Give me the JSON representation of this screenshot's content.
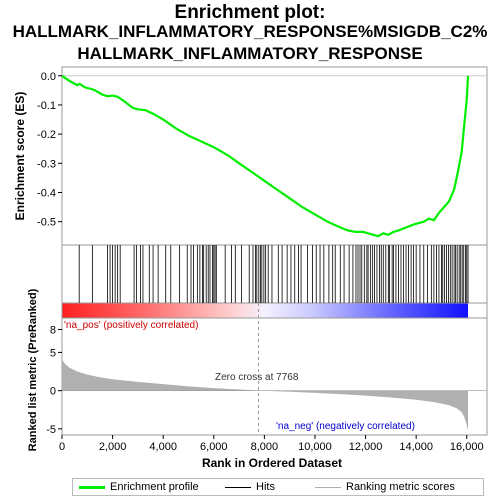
{
  "titles": {
    "line1": "Enrichment plot:",
    "line2": "HALLMARK_INFLAMMATORY_RESPONSE%MSIGDB_C2%",
    "line3": "HALLMARK_INFLAMMATORY_RESPONSE"
  },
  "chart_data": {
    "type": "line",
    "xlabel": "Rank in Ordered Dataset",
    "ylabel_top": "Enrichment score (ES)",
    "ylabel_bottom": "Ranked list metric (PreRanked)",
    "xlim": [
      0,
      16800
    ],
    "x_ticks": [
      0,
      2000,
      4000,
      6000,
      8000,
      10000,
      12000,
      14000,
      16000
    ],
    "x_tick_labels": [
      "0",
      "2,000",
      "4,000",
      "6,000",
      "8,000",
      "10,000",
      "12,000",
      "14,000",
      "16,000"
    ],
    "es_ylim": [
      -0.58,
      0.03
    ],
    "es_ticks": [
      0.0,
      -0.1,
      -0.2,
      -0.3,
      -0.4,
      -0.5
    ],
    "es_tick_labels": [
      "0.0",
      "-0.1",
      "-0.2",
      "-0.3",
      "-0.4",
      "-0.5"
    ],
    "metric_ylim": [
      -5.8,
      9.5
    ],
    "metric_ticks": [
      8,
      5,
      0,
      -5
    ],
    "metric_tick_labels": [
      "8",
      "5",
      "0",
      "-5"
    ],
    "enrichment_profile": {
      "x": [
        0,
        300,
        600,
        700,
        900,
        1150,
        1300,
        1600,
        1800,
        2000,
        2200,
        2500,
        2800,
        3000,
        3300,
        3600,
        4000,
        4500,
        5000,
        5500,
        6000,
        6300,
        6600,
        7000,
        7500,
        8000,
        8500,
        9000,
        9500,
        10000,
        10500,
        11000,
        11300,
        11600,
        11900,
        12100,
        12300,
        12500,
        12700,
        12900,
        13100,
        13300,
        13600,
        13900,
        14100,
        14300,
        14500,
        14700,
        14900,
        15100,
        15300,
        15500,
        15650,
        15800,
        15900,
        16000,
        16050
      ],
      "y": [
        0.0,
        -0.018,
        -0.032,
        -0.028,
        -0.04,
        -0.045,
        -0.05,
        -0.065,
        -0.07,
        -0.068,
        -0.072,
        -0.09,
        -0.11,
        -0.115,
        -0.118,
        -0.13,
        -0.15,
        -0.18,
        -0.205,
        -0.225,
        -0.245,
        -0.26,
        -0.275,
        -0.3,
        -0.33,
        -0.36,
        -0.39,
        -0.42,
        -0.45,
        -0.475,
        -0.5,
        -0.52,
        -0.53,
        -0.535,
        -0.535,
        -0.54,
        -0.545,
        -0.55,
        -0.54,
        -0.545,
        -0.535,
        -0.53,
        -0.52,
        -0.51,
        -0.505,
        -0.5,
        -0.49,
        -0.495,
        -0.47,
        -0.45,
        -0.43,
        -0.39,
        -0.33,
        -0.26,
        -0.17,
        -0.08,
        0.0
      ]
    },
    "hit_ranks": [
      680,
      1200,
      1800,
      1900,
      2000,
      2100,
      2200,
      2300,
      2850,
      2950,
      3100,
      3200,
      3450,
      3600,
      3800,
      4100,
      4300,
      4650,
      4950,
      5100,
      5200,
      5350,
      5450,
      5550,
      5600,
      5700,
      5780,
      5850,
      5950,
      6000,
      6050,
      6100,
      6450,
      6700,
      6850,
      7100,
      7400,
      7550,
      7650,
      7700,
      7780,
      7850,
      7900,
      7980,
      8050,
      8150,
      8300,
      8550,
      8700,
      8900,
      9050,
      9200,
      9350,
      9450,
      9700,
      9900,
      10050,
      10200,
      10350,
      10550,
      10700,
      10800,
      11000,
      11150,
      11350,
      11500,
      11620,
      11700,
      11780,
      11850,
      11950,
      12050,
      12100,
      12200,
      12280,
      12350,
      12450,
      12550,
      12620,
      12700,
      12800,
      12900,
      12950,
      13050,
      13100,
      13200,
      13300,
      13400,
      13500,
      13600,
      13700,
      13800,
      13900,
      14000,
      14150,
      14300,
      14450,
      14600,
      14700,
      14800,
      14900,
      15000,
      15050,
      15120,
      15200,
      15280,
      15350,
      15420,
      15500,
      15560,
      15620,
      15700,
      15760,
      15820,
      15880,
      15950,
      16000,
      16050
    ],
    "ranked_metric_profile": {
      "x": [
        0,
        50,
        150,
        300,
        600,
        1000,
        1500,
        2000,
        3000,
        4000,
        5000,
        6000,
        7000,
        7768,
        9000,
        10000,
        11000,
        12000,
        13000,
        14000,
        14800,
        15300,
        15600,
        15800,
        15900,
        15980,
        16050
      ],
      "y": [
        4.2,
        3.8,
        3.4,
        3.0,
        2.5,
        2.1,
        1.75,
        1.5,
        1.15,
        0.85,
        0.55,
        0.33,
        0.15,
        0.0,
        -0.15,
        -0.3,
        -0.45,
        -0.65,
        -0.9,
        -1.2,
        -1.55,
        -1.9,
        -2.3,
        -2.8,
        -3.4,
        -4.3,
        -5.2
      ]
    },
    "annotations": {
      "pos_label": "'na_pos' (positively correlated)",
      "neg_label": "'na_neg' (negatively correlated)",
      "zero_cross": "Zero cross at 7768",
      "zero_cross_rank": 7768
    },
    "colors": {
      "profile": "#00ee00",
      "hits": "#000000",
      "metric_fill": "#b0b0b0",
      "pos_label": "#cc0000",
      "neg_label": "#0000cc",
      "bar_red": "#ff0000",
      "bar_blue": "#0000ff"
    },
    "legend": {
      "placement": "bottom",
      "items": [
        "Enrichment profile",
        "Hits",
        "Ranking metric scores"
      ]
    }
  }
}
